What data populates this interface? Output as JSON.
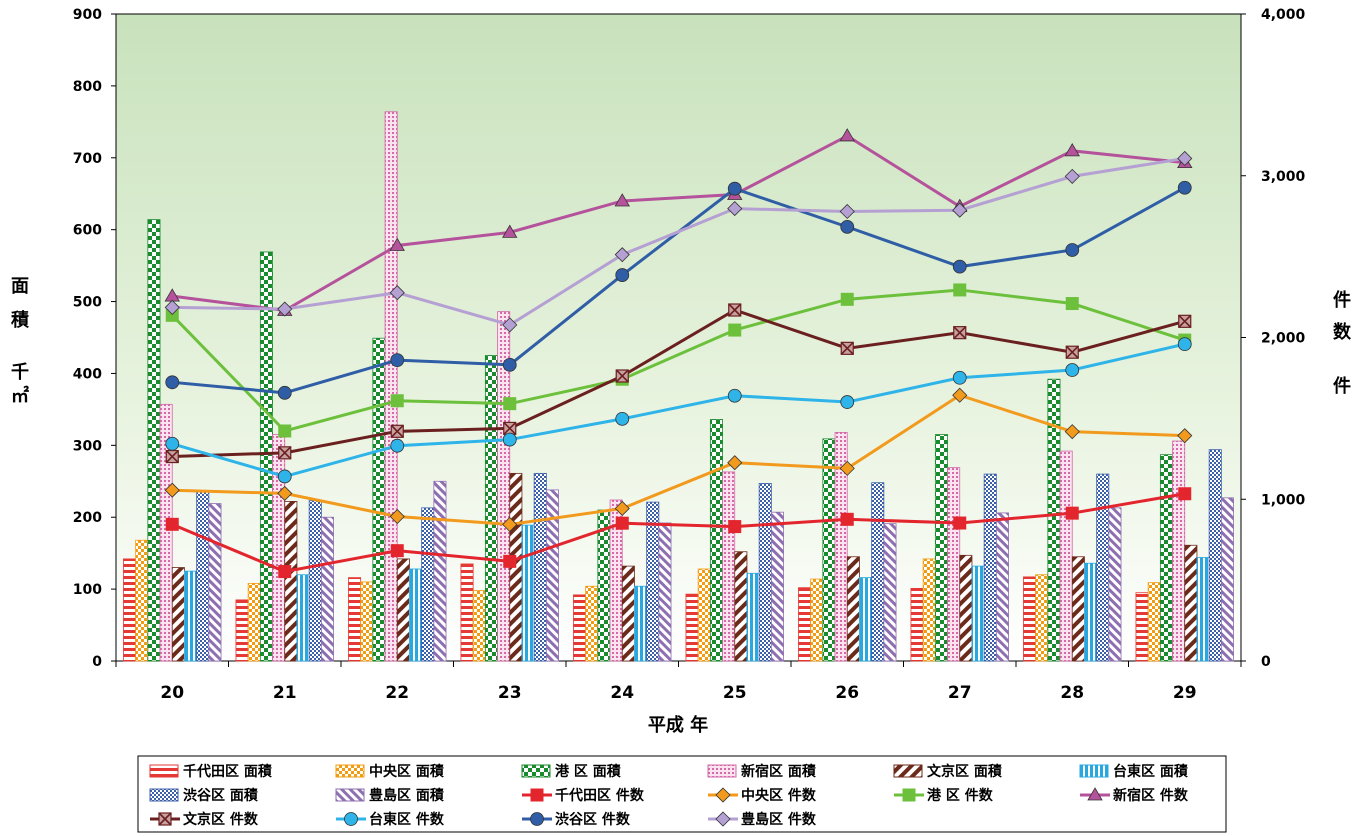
{
  "chart_data": {
    "type": "bar",
    "categories": [
      "20",
      "21",
      "22",
      "23",
      "24",
      "25",
      "26",
      "27",
      "28",
      "29"
    ],
    "xlabel": "平成 年",
    "ylabel_left": [
      "面",
      "積",
      "千",
      "㎡"
    ],
    "ylabel_right": [
      "件",
      "数",
      "件"
    ],
    "ylim_left": [
      0,
      900
    ],
    "ylim_right": [
      0,
      4000
    ],
    "yticks_left": [
      "0",
      "100",
      "200",
      "300",
      "400",
      "500",
      "600",
      "700",
      "800",
      "900"
    ],
    "yticks_right": [
      "0",
      "1,000",
      "2,000",
      "3,000",
      "4,000"
    ],
    "legend_position": "bottom",
    "bar_series": [
      {
        "name": "千代田区 面積",
        "color": "#e53935",
        "values": [
          142,
          85,
          116,
          135,
          92,
          93,
          102,
          101,
          117,
          95
        ]
      },
      {
        "name": "中央区 面積",
        "color": "#f39c12",
        "values": [
          168,
          108,
          110,
          98,
          104,
          128,
          114,
          142,
          120,
          109
        ]
      },
      {
        "name": "港 区 面積",
        "color": "#1a8a2e",
        "values": [
          614,
          569,
          449,
          425,
          210,
          336,
          309,
          315,
          392,
          287
        ]
      },
      {
        "name": "新宿区 面積",
        "color": "#d46aa8",
        "values": [
          357,
          315,
          764,
          486,
          224,
          263,
          318,
          269,
          292,
          306
        ]
      },
      {
        "name": "文京区 面積",
        "color": "#6b2a1a",
        "values": [
          130,
          222,
          142,
          261,
          132,
          152,
          145,
          147,
          145,
          161
        ]
      },
      {
        "name": "台東区 面積",
        "color": "#29a8e0",
        "values": [
          125,
          120,
          128,
          189,
          104,
          122,
          116,
          132,
          136,
          144
        ]
      },
      {
        "name": "渋谷区 面積",
        "color": "#3b5fa8",
        "values": [
          237,
          223,
          213,
          261,
          221,
          247,
          248,
          260,
          260,
          294
        ]
      },
      {
        "name": "豊島区 面積",
        "color": "#8e6fb0",
        "values": [
          219,
          200,
          250,
          238,
          192,
          207,
          191,
          206,
          213,
          227
        ]
      }
    ],
    "line_series": [
      {
        "name": "千代田区 件数",
        "color": "#e3262e",
        "marker": "square",
        "values": [
          845,
          553,
          682,
          616,
          852,
          831,
          876,
          853,
          914,
          1034
        ]
      },
      {
        "name": "中央区 件数",
        "color": "#f29a1d",
        "marker": "diamond",
        "values": [
          1056,
          1036,
          893,
          844,
          943,
          1226,
          1191,
          1643,
          1418,
          1393
        ]
      },
      {
        "name": "港 区 件数",
        "color": "#6cc03c",
        "marker": "square",
        "values": [
          2137,
          1422,
          1609,
          1591,
          1742,
          2046,
          2236,
          2294,
          2210,
          1984
        ]
      },
      {
        "name": "新宿区 件数",
        "color": "#b5529c",
        "marker": "triangle",
        "values": [
          2256,
          2167,
          2569,
          2650,
          2844,
          2884,
          3246,
          2810,
          3154,
          3081
        ]
      },
      {
        "name": "文京区 件数",
        "color": "#6b2020",
        "marker": "xsquare",
        "values": [
          1264,
          1287,
          1420,
          1438,
          1762,
          2170,
          1933,
          2030,
          1909,
          2100
        ]
      },
      {
        "name": "台東区 件数",
        "color": "#2eb4e8",
        "marker": "circle",
        "values": [
          1343,
          1141,
          1331,
          1369,
          1497,
          1640,
          1601,
          1751,
          1799,
          1959
        ]
      },
      {
        "name": "渋谷区 件数",
        "color": "#2f5ea6",
        "marker": "circle",
        "values": [
          1723,
          1658,
          1860,
          1831,
          2386,
          2920,
          2684,
          2438,
          2541,
          2926
        ]
      },
      {
        "name": "豊島区 件数",
        "color": "#b5a0d4",
        "marker": "diamond",
        "values": [
          2186,
          2176,
          2277,
          2078,
          2512,
          2797,
          2779,
          2787,
          2996,
          3107
        ]
      }
    ]
  }
}
